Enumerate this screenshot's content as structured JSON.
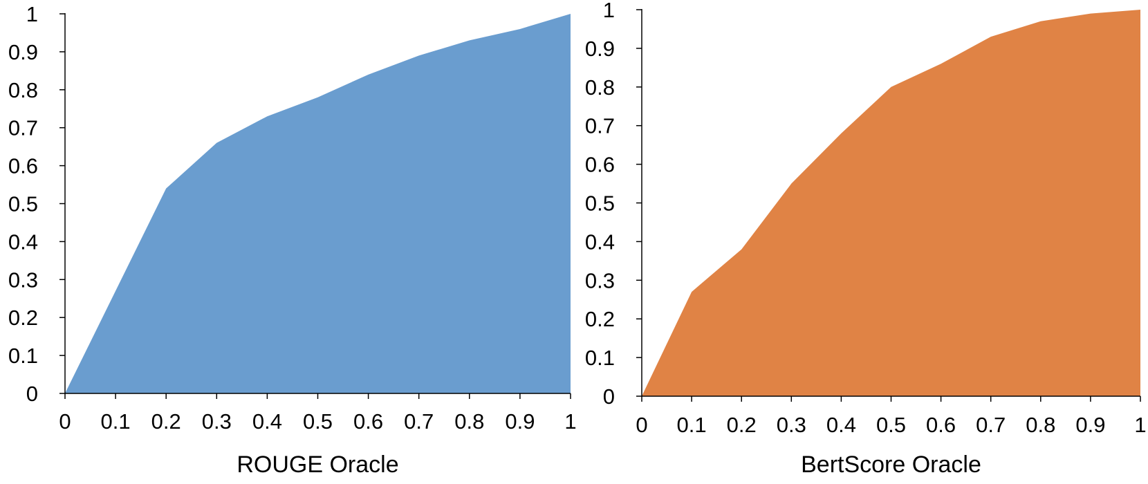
{
  "chart_data": [
    {
      "type": "area",
      "title": "",
      "xlabel": "ROUGE Oracle",
      "ylabel": "",
      "x": [
        0,
        0.1,
        0.2,
        0.3,
        0.4,
        0.5,
        0.6,
        0.7,
        0.8,
        0.9,
        1
      ],
      "series": [
        {
          "values": [
            0,
            0.27,
            0.54,
            0.66,
            0.73,
            0.78,
            0.84,
            0.89,
            0.93,
            0.96,
            1.0
          ]
        }
      ],
      "xlim": [
        0,
        1
      ],
      "ylim": [
        0,
        1
      ],
      "x_ticks": [
        "0",
        "0.1",
        "0.2",
        "0.3",
        "0.4",
        "0.5",
        "0.6",
        "0.7",
        "0.8",
        "0.9",
        "1"
      ],
      "y_ticks": [
        "0",
        "0.1",
        "0.2",
        "0.3",
        "0.4",
        "0.5",
        "0.6",
        "0.7",
        "0.8",
        "0.9",
        "1"
      ],
      "color": "#6a9dcf",
      "grid": false,
      "legend": "none"
    },
    {
      "type": "area",
      "title": "",
      "xlabel": "BertScore Oracle",
      "ylabel": "",
      "x": [
        0,
        0.1,
        0.2,
        0.3,
        0.4,
        0.5,
        0.6,
        0.7,
        0.8,
        0.9,
        1
      ],
      "series": [
        {
          "values": [
            0,
            0.27,
            0.38,
            0.55,
            0.68,
            0.8,
            0.86,
            0.93,
            0.97,
            0.99,
            1.0
          ]
        }
      ],
      "xlim": [
        0,
        1
      ],
      "ylim": [
        0,
        1
      ],
      "x_ticks": [
        "0",
        "0.1",
        "0.2",
        "0.3",
        "0.4",
        "0.5",
        "0.6",
        "0.7",
        "0.8",
        "0.9",
        "1"
      ],
      "y_ticks": [
        "0",
        "0.1",
        "0.2",
        "0.3",
        "0.4",
        "0.5",
        "0.6",
        "0.7",
        "0.8",
        "0.9",
        "1"
      ],
      "color": "#e08345",
      "grid": false,
      "legend": "none"
    }
  ]
}
